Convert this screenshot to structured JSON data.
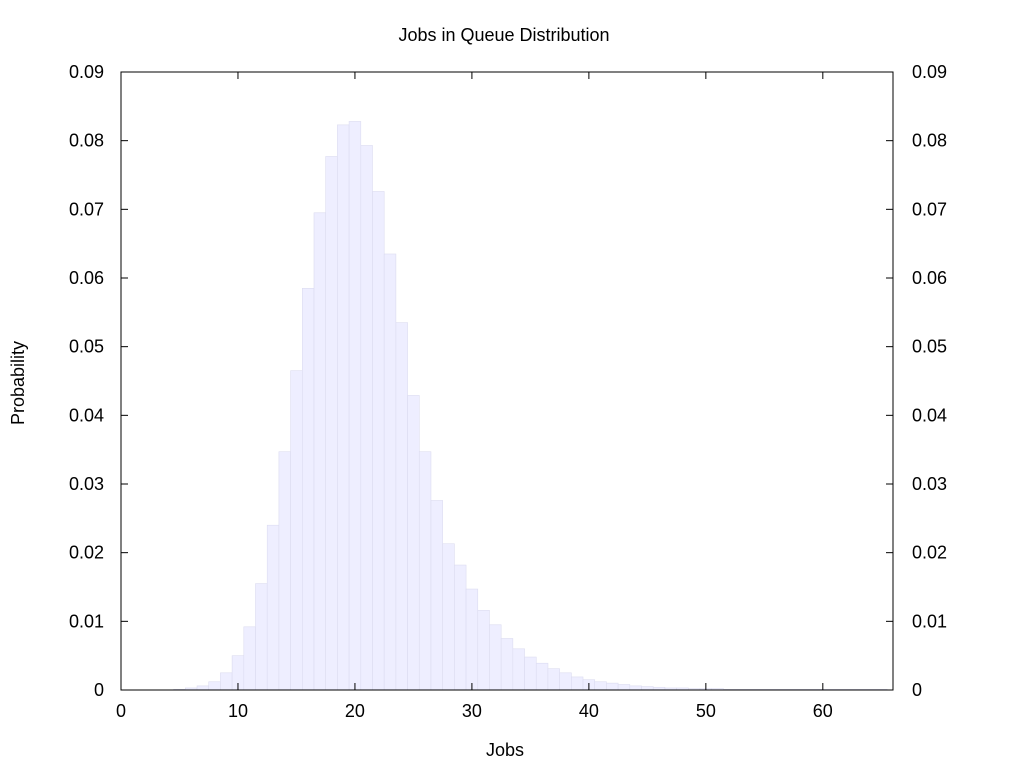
{
  "chart_data": {
    "type": "bar",
    "title": "Jobs in Queue Distribution",
    "xlabel": "Jobs",
    "ylabel": "Probability",
    "xlim": [
      0,
      66
    ],
    "ylim": [
      0,
      0.09
    ],
    "x_ticks": [
      0,
      10,
      20,
      30,
      40,
      50,
      60
    ],
    "y_ticks": [
      0,
      0.01,
      0.02,
      0.03,
      0.04,
      0.05,
      0.06,
      0.07,
      0.08,
      0.09
    ],
    "y_tick_labels": [
      "0",
      "0.01",
      "0.02",
      "0.03",
      "0.04",
      "0.05",
      "0.06",
      "0.07",
      "0.08",
      "0.09"
    ],
    "y_ticks_mirrored_right": true,
    "grid": false,
    "bar_color": "#eeeeff",
    "bar_edge_color": "#dcdcf0",
    "x": [
      5,
      6,
      7,
      8,
      9,
      10,
      11,
      12,
      13,
      14,
      15,
      16,
      17,
      18,
      19,
      20,
      21,
      22,
      23,
      24,
      25,
      26,
      27,
      28,
      29,
      30,
      31,
      32,
      33,
      34,
      35,
      36,
      37,
      38,
      39,
      40,
      41,
      42,
      43,
      44,
      45,
      46,
      47,
      48,
      49,
      50,
      51,
      52,
      53,
      54,
      55,
      56,
      57,
      58,
      59,
      60,
      61,
      62,
      63,
      64,
      65
    ],
    "values": [
      0.0001,
      0.0003,
      0.0006,
      0.0012,
      0.0025,
      0.005,
      0.0092,
      0.0155,
      0.024,
      0.0347,
      0.0465,
      0.0585,
      0.0695,
      0.0777,
      0.0823,
      0.0828,
      0.0793,
      0.0726,
      0.0635,
      0.0535,
      0.0429,
      0.0347,
      0.0276,
      0.0213,
      0.0182,
      0.0147,
      0.0116,
      0.0095,
      0.0075,
      0.006,
      0.0048,
      0.0039,
      0.0031,
      0.0025,
      0.0019,
      0.0015,
      0.0012,
      0.001,
      0.0008,
      0.0006,
      0.0005,
      0.0004,
      0.0003,
      0.0003,
      0.0002,
      0.0002,
      0.0002,
      0.0001,
      0.0001,
      0.0001,
      0.0001,
      0.0001,
      0.0001,
      0.0001,
      0.0001,
      0.0001,
      0.0001,
      0.0001,
      0.0001,
      0.0001,
      0.0001
    ]
  }
}
